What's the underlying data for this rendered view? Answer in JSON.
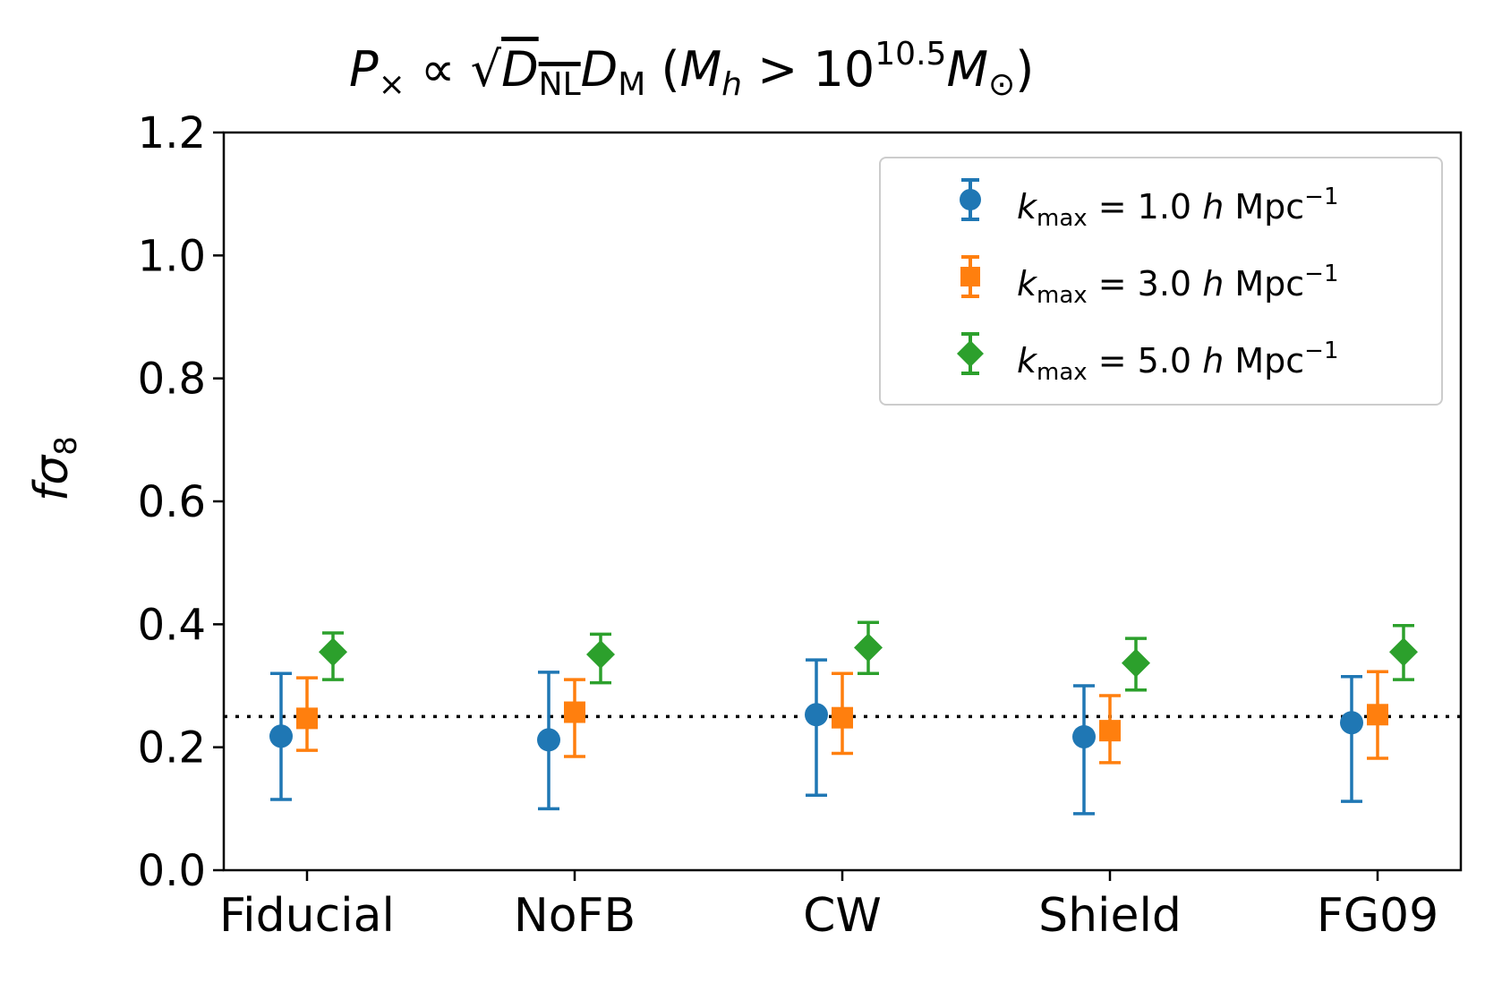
{
  "chart_data": {
    "type": "scatter",
    "title": {
      "main": "P",
      "sub_cross": "×",
      "prop": " ∝ ",
      "sqrt": "√",
      "dnl": "D",
      "dnl_sub": "NL",
      "dm": "D",
      "dm_sub": "M",
      "cond_open": " (",
      "mh": "M",
      "mh_sub": "h",
      "gt": " > 10",
      "exp": "10.5",
      "msun": "M",
      "sun_sub": "⊙",
      "cond_close": ")"
    },
    "ylabel": {
      "main": "fσ",
      "sub": "8"
    },
    "ylim": [
      0.0,
      1.2
    ],
    "yticks": [
      "0.0",
      "0.2",
      "0.4",
      "0.6",
      "0.8",
      "1.0",
      "1.2"
    ],
    "categories": [
      "Fiducial",
      "NoFB",
      "CW",
      "Shield",
      "FG09"
    ],
    "reference_line": 0.25,
    "series": [
      {
        "name": "k_max = 1.0 h Mpc^-1",
        "color": "#1f77b4",
        "marker": "circle",
        "values": [
          0.218,
          0.212,
          0.253,
          0.217,
          0.24
        ],
        "err_low": [
          0.115,
          0.1,
          0.122,
          0.092,
          0.112
        ],
        "err_high": [
          0.32,
          0.322,
          0.342,
          0.3,
          0.315
        ]
      },
      {
        "name": "k_max = 3.0 h Mpc^-1",
        "color": "#ff7f0e",
        "marker": "square",
        "values": [
          0.247,
          0.257,
          0.248,
          0.227,
          0.253
        ],
        "err_low": [
          0.195,
          0.185,
          0.19,
          0.175,
          0.182
        ],
        "err_high": [
          0.313,
          0.31,
          0.32,
          0.284,
          0.323
        ]
      },
      {
        "name": "k_max = 5.0 h Mpc^-1",
        "color": "#2ca02c",
        "marker": "diamond",
        "values": [
          0.355,
          0.351,
          0.362,
          0.337,
          0.355
        ],
        "err_low": [
          0.31,
          0.305,
          0.32,
          0.293,
          0.31
        ],
        "err_high": [
          0.386,
          0.384,
          0.403,
          0.377,
          0.398
        ]
      }
    ],
    "legend": [
      {
        "k": "k",
        "k_sub": "max",
        "eq": " = 1.0 ",
        "h": "h",
        "unit": " Mpc",
        "exp": "−1"
      },
      {
        "k": "k",
        "k_sub": "max",
        "eq": " = 3.0 ",
        "h": "h",
        "unit": " Mpc",
        "exp": "−1"
      },
      {
        "k": "k",
        "k_sub": "max",
        "eq": " = 5.0 ",
        "h": "h",
        "unit": " Mpc",
        "exp": "−1"
      }
    ],
    "legend_position": "top-right"
  }
}
